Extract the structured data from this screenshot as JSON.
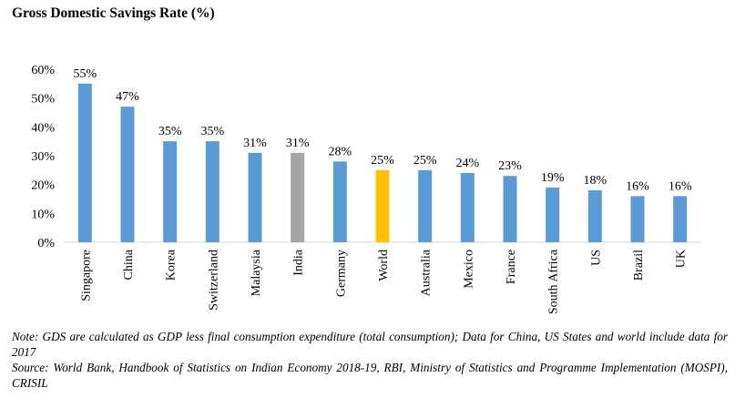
{
  "chart_data": {
    "type": "bar",
    "title": "Gross Domestic Savings Rate (%)",
    "xlabel": "",
    "ylabel": "",
    "ylim": [
      0,
      60
    ],
    "yticks": [
      "0%",
      "10%",
      "20%",
      "30%",
      "40%",
      "50%",
      "60%"
    ],
    "categories": [
      "Singapore",
      "China",
      "Korea",
      "Switzerland",
      "Malaysia",
      "India",
      "Germany",
      "World",
      "Australia",
      "Mexico",
      "France",
      "South Africa",
      "US",
      "Brazil",
      "UK"
    ],
    "values": [
      55,
      47,
      35,
      35,
      31,
      31,
      28,
      25,
      25,
      24,
      23,
      19,
      18,
      16,
      16
    ],
    "data_labels": [
      "55%",
      "47%",
      "35%",
      "35%",
      "31%",
      "31%",
      "28%",
      "25%",
      "25%",
      "24%",
      "23%",
      "19%",
      "18%",
      "16%",
      "16%"
    ],
    "grid": false,
    "legend": "none",
    "colors": {
      "default": "#5B9BD5",
      "India": "#A5A5A5",
      "World": "#FFC000",
      "axis": "#D9D9D9"
    }
  },
  "notes": {
    "note": "Note: GDS are calculated as GDP less final consumption expenditure (total consumption); Data for China, US States and world include data for 2017",
    "source": "Source: World Bank, Handbook of Statistics on Indian Economy 2018-19, RBI, Ministry of Statistics and Programme Implementation (MOSPI), CRISIL"
  }
}
